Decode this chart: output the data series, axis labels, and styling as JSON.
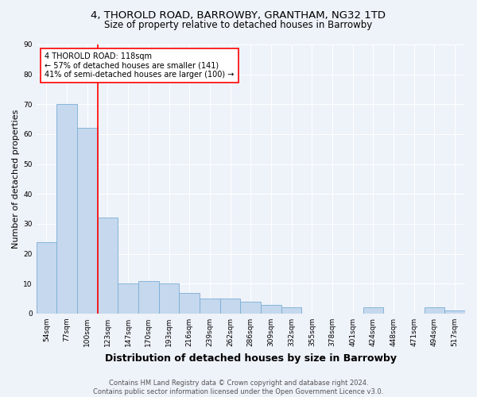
{
  "title_line1": "4, THOROLD ROAD, BARROWBY, GRANTHAM, NG32 1TD",
  "title_line2": "Size of property relative to detached houses in Barrowby",
  "xlabel": "Distribution of detached houses by size in Barrowby",
  "ylabel": "Number of detached properties",
  "categories": [
    "54sqm",
    "77sqm",
    "100sqm",
    "123sqm",
    "147sqm",
    "170sqm",
    "193sqm",
    "216sqm",
    "239sqm",
    "262sqm",
    "286sqm",
    "309sqm",
    "332sqm",
    "355sqm",
    "378sqm",
    "401sqm",
    "424sqm",
    "448sqm",
    "471sqm",
    "494sqm",
    "517sqm"
  ],
  "values": [
    24,
    70,
    62,
    32,
    10,
    11,
    10,
    7,
    5,
    5,
    4,
    3,
    2,
    0,
    0,
    0,
    2,
    0,
    0,
    2,
    1
  ],
  "bar_color": "#c5d8ed",
  "bar_edge_color": "#7aaed6",
  "property_line_x": 2.5,
  "annotation_text": "4 THOROLD ROAD: 118sqm\n← 57% of detached houses are smaller (141)\n41% of semi-detached houses are larger (100) →",
  "annotation_box_color": "white",
  "annotation_box_edge_color": "red",
  "vline_color": "red",
  "ylim": [
    0,
    90
  ],
  "yticks": [
    0,
    10,
    20,
    30,
    40,
    50,
    60,
    70,
    80,
    90
  ],
  "footer_line1": "Contains HM Land Registry data © Crown copyright and database right 2024.",
  "footer_line2": "Contains public sector information licensed under the Open Government Licence v3.0.",
  "background_color": "#eef2f9",
  "grid_color": "white",
  "title_fontsize": 9.5,
  "subtitle_fontsize": 8.5,
  "xlabel_fontsize": 9,
  "ylabel_fontsize": 8,
  "tick_fontsize": 6.5,
  "annotation_fontsize": 7,
  "footer_fontsize": 6
}
